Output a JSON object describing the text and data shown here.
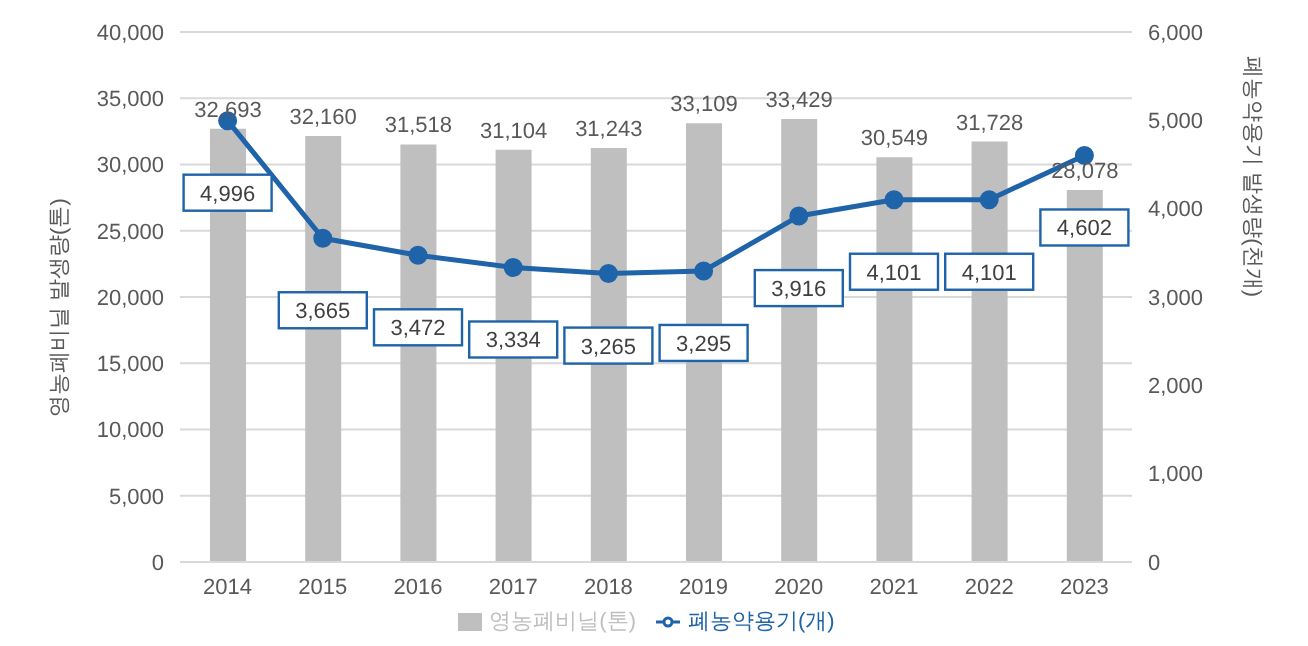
{
  "chart_data": {
    "type": "bar",
    "categories": [
      "2014",
      "2015",
      "2016",
      "2017",
      "2018",
      "2019",
      "2020",
      "2021",
      "2022",
      "2023"
    ],
    "series": [
      {
        "name": "영농폐비닐(톤)",
        "color": "#bfbfbf",
        "values": [
          32693,
          32160,
          31518,
          31104,
          31243,
          33109,
          33429,
          30549,
          31728,
          28078
        ],
        "value_labels": [
          "32,693",
          "32,160",
          "31,518",
          "31,104",
          "31,243",
          "33,109",
          "33,429",
          "30,549",
          "31,728",
          "28,078"
        ]
      },
      {
        "name": "폐농약용기(개)",
        "type": "line",
        "axis": "y2",
        "color": "#1f63a8",
        "values": [
          4996,
          3665,
          3472,
          3334,
          3265,
          3295,
          3916,
          4101,
          4101,
          4602
        ],
        "value_labels": [
          "4,996",
          "3,665",
          "3,472",
          "3,334",
          "3,265",
          "3,295",
          "3,916",
          "4,101",
          "4,101",
          "4,602"
        ]
      }
    ],
    "ylabel": "영농폐비닐 발생량(톤)",
    "y2label": "폐농약용기 발생량(천개)",
    "ylim": [
      0,
      40000
    ],
    "yticks": [
      0,
      {
        "value": 5000,
        "label": "5,000"
      },
      {
        "value": 10000,
        "label": "10,000"
      },
      {
        "value": 15000,
        "label": "15,000"
      },
      {
        "value": 20000,
        "label": "20,000"
      },
      {
        "value": 25000,
        "label": "25,000"
      },
      {
        "value": 30000,
        "label": "30,000"
      },
      {
        "value": 35000,
        "label": "35,000"
      },
      {
        "value": 40000,
        "label": "40,000"
      }
    ],
    "y2lim": [
      0,
      6000
    ],
    "y2ticks": [
      0,
      {
        "value": 1000,
        "label": "1,000"
      },
      {
        "value": 2000,
        "label": "2,000"
      },
      {
        "value": 3000,
        "label": "3,000"
      },
      {
        "value": 4000,
        "label": "4,000"
      },
      {
        "value": 5000,
        "label": "5,000"
      },
      {
        "value": 6000,
        "label": "6,000"
      }
    ],
    "grid": "y",
    "legend": "bottom",
    "marker": "circle",
    "line_style": "solid"
  }
}
